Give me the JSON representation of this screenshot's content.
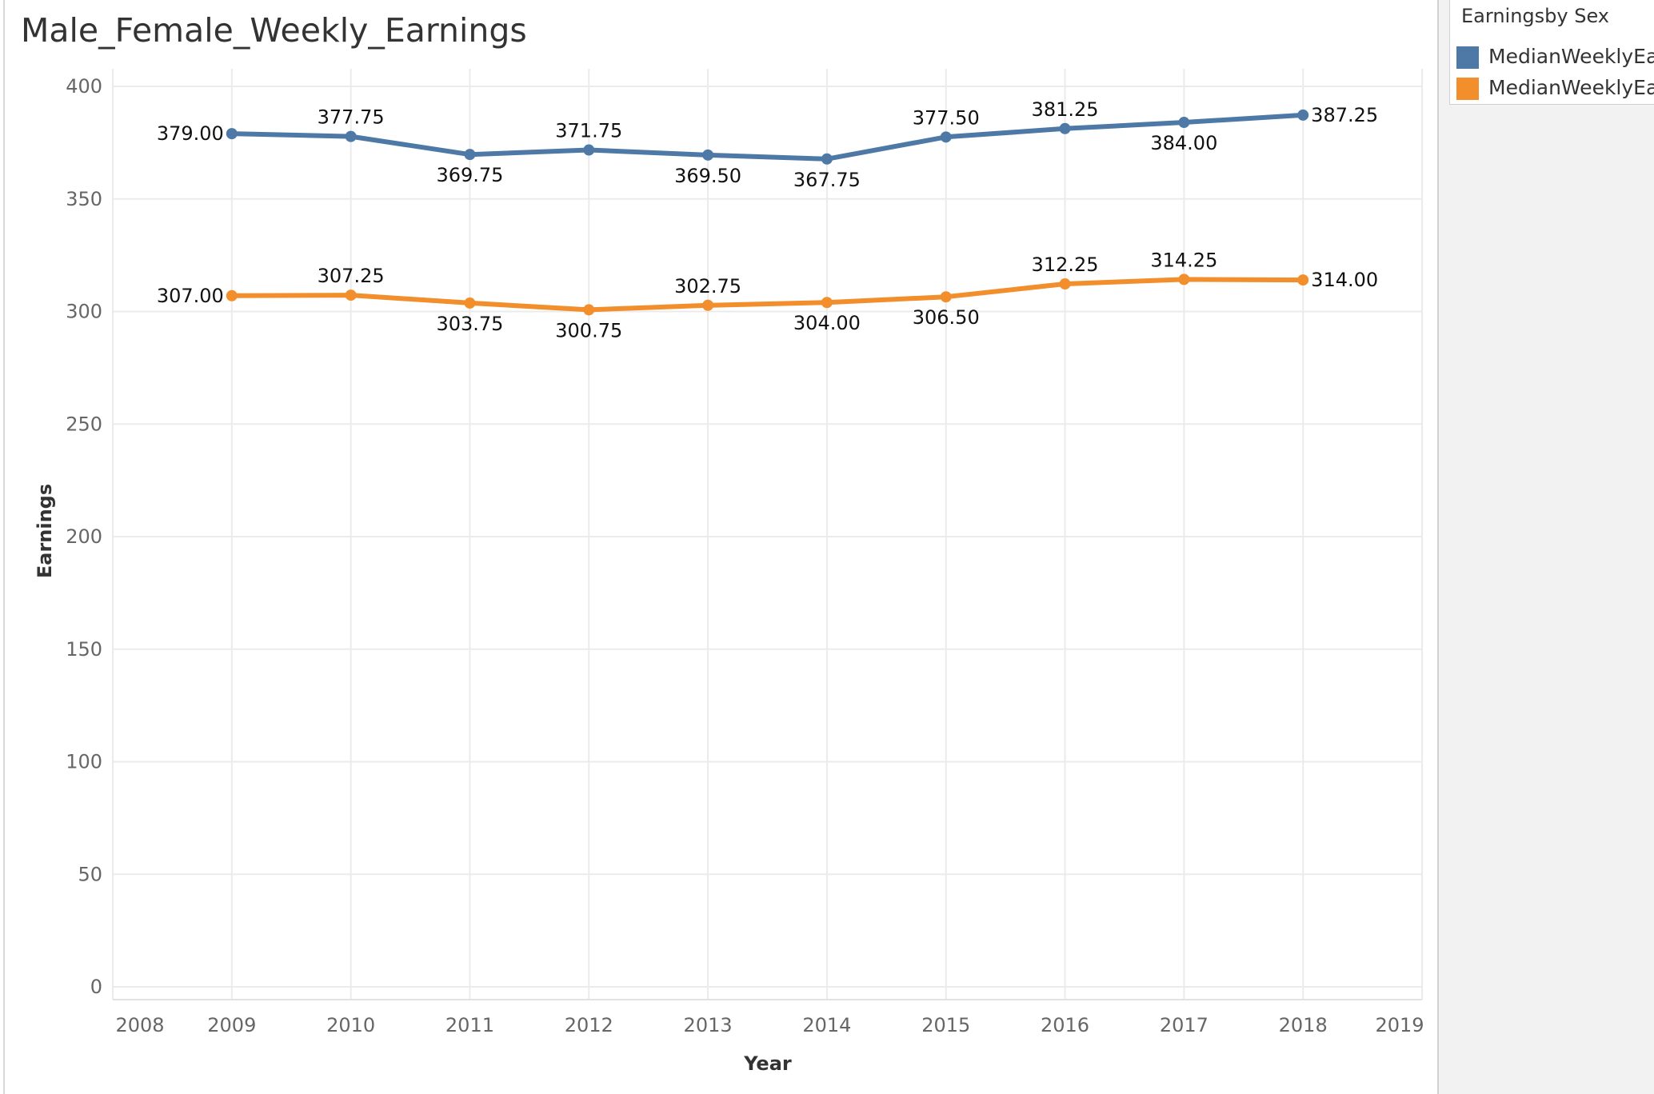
{
  "window": {
    "title": "Male_Female_Weekly_Earnings"
  },
  "legend": {
    "title": "Earningsby Sex",
    "items": [
      {
        "label": "MedianWeeklyEarn",
        "color": "#4e79a7"
      },
      {
        "label": "MedianWeeklyEarn",
        "color": "#f28e2b"
      }
    ]
  },
  "chart_data": {
    "type": "line",
    "title": "Male_Female_Weekly_Earnings",
    "xlabel": "Year",
    "ylabel": "Earnings",
    "xlim": [
      2008,
      2019
    ],
    "ylim": [
      0,
      400
    ],
    "x_ticks": [
      2008,
      2009,
      2010,
      2011,
      2012,
      2013,
      2014,
      2015,
      2016,
      2017,
      2018,
      2019
    ],
    "y_ticks": [
      0,
      50,
      100,
      150,
      200,
      250,
      300,
      350,
      400
    ],
    "grid": true,
    "legend_position": "top-right",
    "x": [
      2009,
      2010,
      2011,
      2012,
      2013,
      2014,
      2015,
      2016,
      2017,
      2018
    ],
    "series": [
      {
        "color": "#4e79a7",
        "values": [
          379.0,
          377.75,
          369.75,
          371.75,
          369.5,
          367.75,
          377.5,
          381.25,
          384.0,
          387.25
        ],
        "labels": [
          "379.00",
          "377.75",
          "369.75",
          "371.75",
          "369.50",
          "367.75",
          "377.50",
          "381.25",
          "384.00",
          "387.25"
        ],
        "label_pos": [
          "left",
          "above",
          "below",
          "above",
          "below",
          "below",
          "above",
          "above",
          "below",
          "right"
        ]
      },
      {
        "color": "#f28e2b",
        "values": [
          307.0,
          307.25,
          303.75,
          300.75,
          302.75,
          304.0,
          306.5,
          312.25,
          314.25,
          314.0
        ],
        "labels": [
          "307.00",
          "307.25",
          "303.75",
          "300.75",
          "302.75",
          "304.00",
          "306.50",
          "312.25",
          "314.25",
          "314.00"
        ],
        "label_pos": [
          "left",
          "above",
          "below",
          "below",
          "above",
          "below",
          "below",
          "above",
          "above",
          "right"
        ]
      }
    ]
  }
}
